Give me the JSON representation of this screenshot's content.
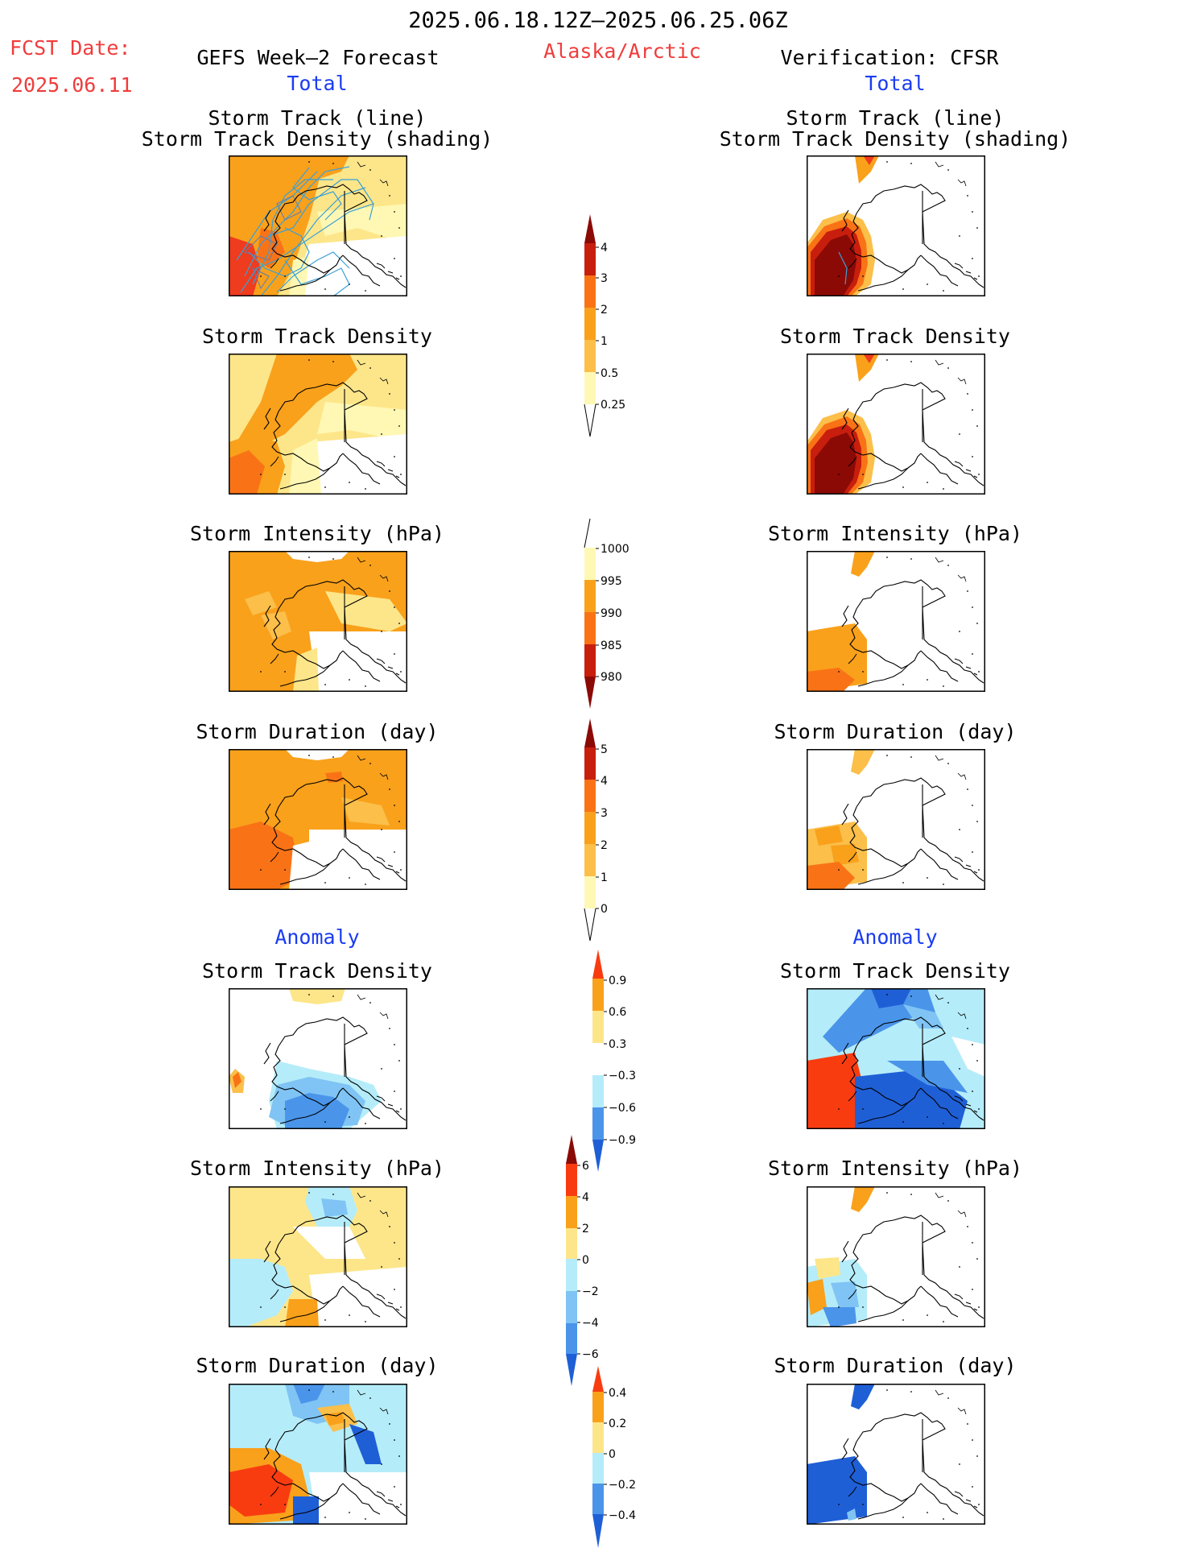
{
  "header": {
    "date_range": "2025.06.18.12Z–2025.06.25.06Z",
    "fcst_label": "FCST Date:",
    "fcst_date": "2025.06.11",
    "left_model": "GEFS Week–2 Forecast",
    "region": "Alaska/Arctic",
    "right_model": "Verification: CFSR",
    "total_left": "Total",
    "total_right": "Total",
    "anomaly_left": "Anomaly",
    "anomaly_right": "Anomaly"
  },
  "panels": {
    "track_line": "Storm Track (line)",
    "track_density_shading": "Storm Track Density (shading)",
    "track_density": "Storm Track Density",
    "intensity": "Storm Intensity (hPa)",
    "duration": "Storm Duration (day)"
  },
  "colorbars": {
    "density": [
      "4",
      "3",
      "2",
      "1",
      "0.5",
      "0.25"
    ],
    "intensity": [
      "1000",
      "995",
      "990",
      "985",
      "980"
    ],
    "duration": [
      "5",
      "4",
      "3",
      "2",
      "1",
      "0"
    ],
    "anom_density": [
      "0.9",
      "0.6",
      "0.3",
      "−0.3",
      "−0.6",
      "−0.9"
    ],
    "anom_intensity": [
      "6",
      "4",
      "2",
      "0",
      "−2",
      "−4",
      "−6"
    ],
    "anom_duration": [
      "0.4",
      "0.2",
      "0",
      "−0.2",
      "−0.4"
    ]
  },
  "colors": {
    "palette_warm": [
      "#fff8b4",
      "#fde68a",
      "#fbbf4a",
      "#f9a11b",
      "#f97316",
      "#ef3b1e",
      "#c81e0e",
      "#8b0a06"
    ],
    "palette_cold": [
      "#b5ecf9",
      "#7fc4f4",
      "#4a95ea",
      "#1f5fd6"
    ],
    "track_line": "#3aa0d8"
  }
}
